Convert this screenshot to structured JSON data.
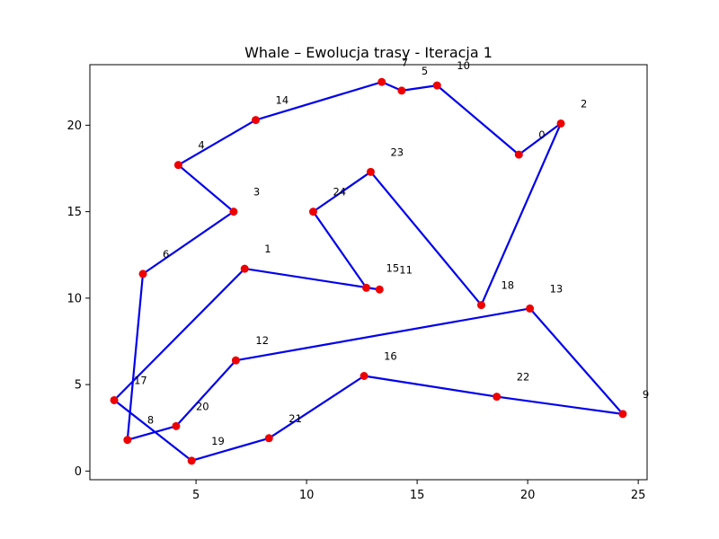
{
  "chart_data": {
    "type": "line",
    "title": "Whale – Ewolucja trasy - Iteracja 1",
    "xlabel": "",
    "ylabel": "",
    "xlim": [
      0.2,
      25.4
    ],
    "ylim": [
      -0.5,
      23.5
    ],
    "xticks": [
      5,
      10,
      15,
      20,
      25
    ],
    "yticks": [
      0,
      5,
      10,
      15,
      20
    ],
    "grid": false,
    "line_color": "#0000ee",
    "point_color": "#ee0000",
    "points": [
      {
        "label": "0",
        "x": 19.6,
        "y": 18.3
      },
      {
        "label": "1",
        "x": 7.2,
        "y": 11.7
      },
      {
        "label": "2",
        "x": 21.5,
        "y": 20.1
      },
      {
        "label": "3",
        "x": 6.7,
        "y": 15.0
      },
      {
        "label": "4",
        "x": 4.2,
        "y": 17.7
      },
      {
        "label": "5",
        "x": 14.3,
        "y": 22.0
      },
      {
        "label": "6",
        "x": 2.6,
        "y": 11.4
      },
      {
        "label": "7",
        "x": 13.4,
        "y": 22.5
      },
      {
        "label": "8",
        "x": 1.9,
        "y": 1.8
      },
      {
        "label": "9",
        "x": 24.3,
        "y": 3.3
      },
      {
        "label": "10",
        "x": 15.9,
        "y": 22.3
      },
      {
        "label": "11",
        "x": 13.3,
        "y": 10.5
      },
      {
        "label": "12",
        "x": 6.8,
        "y": 6.4
      },
      {
        "label": "13",
        "x": 20.1,
        "y": 9.4
      },
      {
        "label": "14",
        "x": 7.7,
        "y": 20.3
      },
      {
        "label": "15",
        "x": 12.7,
        "y": 10.6
      },
      {
        "label": "16",
        "x": 12.6,
        "y": 5.5
      },
      {
        "label": "17",
        "x": 1.3,
        "y": 4.1
      },
      {
        "label": "18",
        "x": 17.9,
        "y": 9.6
      },
      {
        "label": "19",
        "x": 4.8,
        "y": 0.6
      },
      {
        "label": "20",
        "x": 4.1,
        "y": 2.6
      },
      {
        "label": "21",
        "x": 8.3,
        "y": 1.9
      },
      {
        "label": "22",
        "x": 18.6,
        "y": 4.3
      },
      {
        "label": "23",
        "x": 12.9,
        "y": 17.3
      },
      {
        "label": "24",
        "x": 10.3,
        "y": 15.0
      }
    ],
    "route": [
      0,
      2,
      18,
      23,
      24,
      15,
      11,
      1,
      17,
      19,
      21,
      16,
      22,
      9,
      13,
      12,
      20,
      8,
      6,
      3,
      4,
      14,
      7,
      5,
      10,
      0
    ]
  }
}
